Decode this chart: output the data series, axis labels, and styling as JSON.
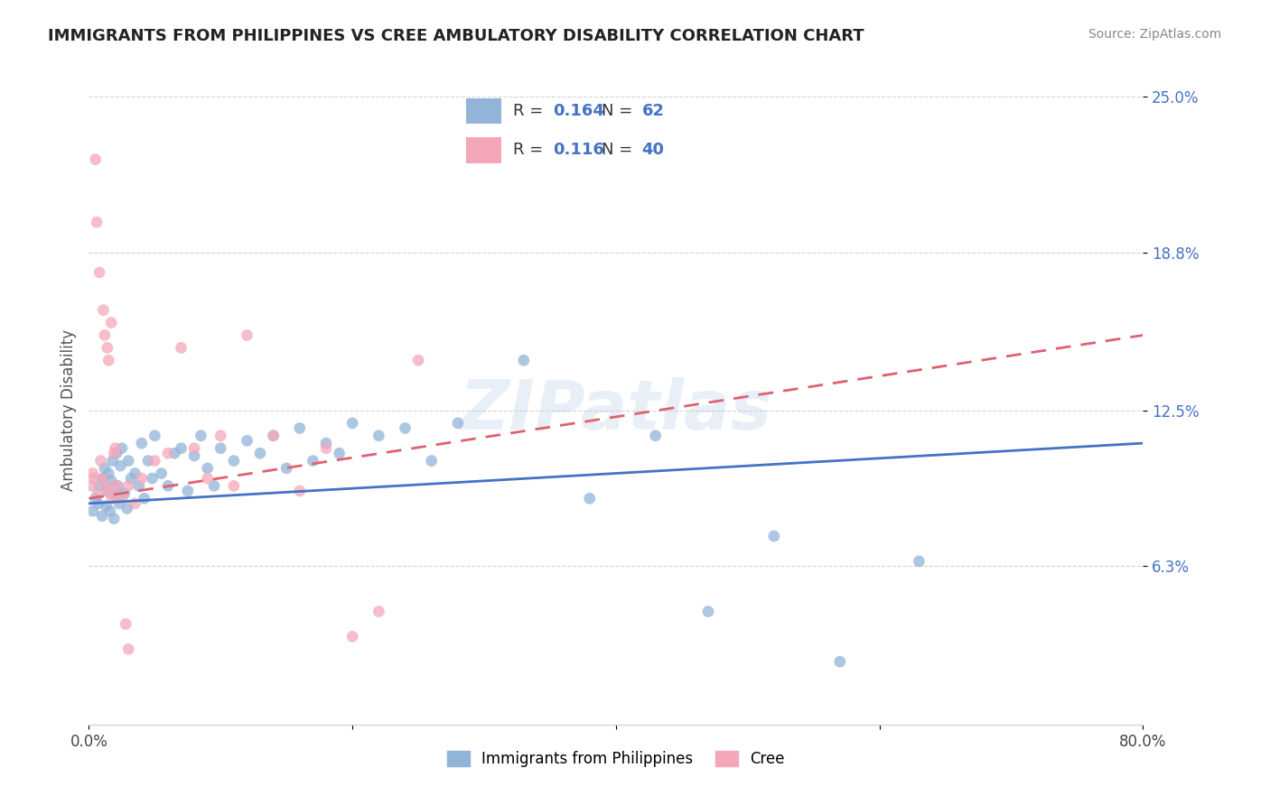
{
  "title": "IMMIGRANTS FROM PHILIPPINES VS CREE AMBULATORY DISABILITY CORRELATION CHART",
  "source": "Source: ZipAtlas.com",
  "ylabel": "Ambulatory Disability",
  "xlim": [
    0.0,
    80.0
  ],
  "ylim": [
    0.0,
    25.0
  ],
  "ytick_positions": [
    6.3,
    12.5,
    18.8,
    25.0
  ],
  "ytick_labels": [
    "6.3%",
    "12.5%",
    "18.8%",
    "25.0%"
  ],
  "legend_labels": [
    "Immigrants from Philippines",
    "Cree"
  ],
  "blue_color": "#92b4d9",
  "pink_color": "#f4a7b9",
  "blue_line_color": "#4472c4",
  "pink_line_color": "#e06070",
  "blue_r": 0.164,
  "blue_n": 62,
  "pink_r": 0.116,
  "pink_n": 40,
  "stat_color": "#4472c4",
  "watermark": "ZIPatlas",
  "blue_scatter_x": [
    0.3,
    0.5,
    0.7,
    0.8,
    1.0,
    1.1,
    1.2,
    1.3,
    1.4,
    1.5,
    1.6,
    1.7,
    1.8,
    1.9,
    2.0,
    2.1,
    2.2,
    2.3,
    2.4,
    2.5,
    2.7,
    2.9,
    3.0,
    3.2,
    3.5,
    3.8,
    4.0,
    4.2,
    4.5,
    4.8,
    5.0,
    5.5,
    6.0,
    6.5,
    7.0,
    7.5,
    8.0,
    8.5,
    9.0,
    9.5,
    10.0,
    11.0,
    12.0,
    13.0,
    14.0,
    15.0,
    16.0,
    17.0,
    18.0,
    19.0,
    20.0,
    22.0,
    24.0,
    26.0,
    28.0,
    33.0,
    38.0,
    43.0,
    47.0,
    52.0,
    57.0,
    63.0
  ],
  "blue_scatter_y": [
    8.5,
    9.0,
    8.8,
    9.5,
    8.3,
    9.8,
    10.2,
    8.7,
    9.3,
    10.0,
    8.5,
    9.7,
    10.5,
    8.2,
    9.1,
    10.8,
    9.5,
    8.8,
    10.3,
    11.0,
    9.2,
    8.6,
    10.5,
    9.8,
    10.0,
    9.5,
    11.2,
    9.0,
    10.5,
    9.8,
    11.5,
    10.0,
    9.5,
    10.8,
    11.0,
    9.3,
    10.7,
    11.5,
    10.2,
    9.5,
    11.0,
    10.5,
    11.3,
    10.8,
    11.5,
    10.2,
    11.8,
    10.5,
    11.2,
    10.8,
    12.0,
    11.5,
    11.8,
    10.5,
    12.0,
    14.5,
    9.0,
    11.5,
    4.5,
    7.5,
    2.5,
    6.5
  ],
  "pink_scatter_x": [
    0.2,
    0.3,
    0.4,
    0.5,
    0.6,
    0.7,
    0.8,
    0.9,
    1.0,
    1.1,
    1.2,
    1.3,
    1.4,
    1.5,
    1.6,
    1.7,
    1.8,
    1.9,
    2.0,
    2.1,
    2.5,
    3.0,
    3.5,
    4.0,
    5.0,
    6.0,
    7.0,
    8.0,
    9.0,
    10.0,
    11.0,
    12.0,
    14.0,
    16.0,
    18.0,
    20.0,
    22.0,
    25.0,
    3.0,
    2.8
  ],
  "pink_scatter_y": [
    9.5,
    10.0,
    9.8,
    22.5,
    20.0,
    9.2,
    18.0,
    10.5,
    9.8,
    16.5,
    15.5,
    9.5,
    15.0,
    14.5,
    9.2,
    16.0,
    9.0,
    10.8,
    11.0,
    9.5,
    9.0,
    9.5,
    8.8,
    9.8,
    10.5,
    10.8,
    15.0,
    11.0,
    9.8,
    11.5,
    9.5,
    15.5,
    11.5,
    9.3,
    11.0,
    3.5,
    4.5,
    14.5,
    3.0,
    4.0
  ]
}
